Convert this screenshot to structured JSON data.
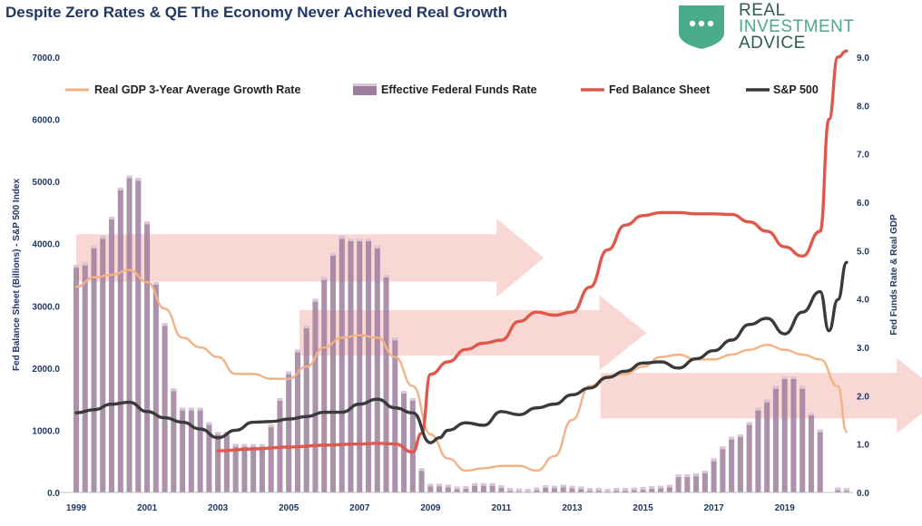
{
  "title": "Despite Zero Rates & QE The Economy Never Achieved Real Growth",
  "brand": {
    "line1": "REAL",
    "line2": "INVESTMENT",
    "line3": "ADVICE",
    "icon": "speech-bubble-icon",
    "color": "#4aaa8c"
  },
  "chart_data": {
    "type": "bar+line",
    "y_left": {
      "label": "Fed Balance Sheet (Billions) - S&P 500 Index",
      "range": [
        0,
        7000
      ],
      "ticks": [
        "0.0",
        "1000.0",
        "2000.0",
        "3000.0",
        "4000.0",
        "5000.0",
        "6000.0",
        "7000.0"
      ]
    },
    "y_right": {
      "label": "Fed Funds Rate & Real GDP",
      "range": [
        0,
        9
      ],
      "ticks": [
        "0.0",
        "1.0",
        "2.0",
        "3.0",
        "4.0",
        "5.0",
        "6.0",
        "7.0",
        "8.0",
        "9.0"
      ]
    },
    "x": {
      "range": [
        1999,
        2020.75
      ],
      "ticks": [
        "1999",
        "2001",
        "2003",
        "2005",
        "2007",
        "2009",
        "2011",
        "2013",
        "2015",
        "2017",
        "2019"
      ]
    },
    "legend": {
      "placement": "top",
      "items": [
        "Real GDP 3-Year Average Growth Rate",
        "Effective Federal Funds Rate",
        "Fed Balance Sheet",
        "S&P 500"
      ]
    },
    "colors": {
      "gdp": "#f4b183",
      "rate_bar": "#9e7e9e",
      "rate_bar_top": "#d9c6d9",
      "balance": "#e0584c",
      "sp500": "#3a3a3a",
      "arrow": "#f4b6b0",
      "axis_text": "#1f3864"
    },
    "series": [
      {
        "name": "Effective Federal Funds Rate",
        "axis": "right",
        "kind": "bar",
        "points": [
          [
            1999.0,
            4.7
          ],
          [
            1999.25,
            4.75
          ],
          [
            1999.5,
            5.1
          ],
          [
            1999.75,
            5.3
          ],
          [
            2000.0,
            5.7
          ],
          [
            2000.25,
            6.3
          ],
          [
            2000.5,
            6.55
          ],
          [
            2000.75,
            6.5
          ],
          [
            2001.0,
            5.6
          ],
          [
            2001.25,
            4.35
          ],
          [
            2001.5,
            3.5
          ],
          [
            2001.75,
            2.15
          ],
          [
            2002.0,
            1.75
          ],
          [
            2002.25,
            1.75
          ],
          [
            2002.5,
            1.75
          ],
          [
            2002.75,
            1.45
          ],
          [
            2003.0,
            1.25
          ],
          [
            2003.25,
            1.25
          ],
          [
            2003.5,
            1.0
          ],
          [
            2003.75,
            1.0
          ],
          [
            2004.0,
            1.0
          ],
          [
            2004.25,
            1.0
          ],
          [
            2004.5,
            1.4
          ],
          [
            2004.75,
            1.95
          ],
          [
            2005.0,
            2.5
          ],
          [
            2005.25,
            2.95
          ],
          [
            2005.5,
            3.45
          ],
          [
            2005.75,
            4.0
          ],
          [
            2006.0,
            4.45
          ],
          [
            2006.25,
            4.95
          ],
          [
            2006.5,
            5.3
          ],
          [
            2006.75,
            5.25
          ],
          [
            2007.0,
            5.25
          ],
          [
            2007.25,
            5.25
          ],
          [
            2007.5,
            5.1
          ],
          [
            2007.75,
            4.5
          ],
          [
            2008.0,
            3.2
          ],
          [
            2008.25,
            2.1
          ],
          [
            2008.5,
            1.95
          ],
          [
            2008.75,
            0.5
          ],
          [
            2009.0,
            0.18
          ],
          [
            2009.25,
            0.18
          ],
          [
            2009.5,
            0.16
          ],
          [
            2009.75,
            0.12
          ],
          [
            2010.0,
            0.13
          ],
          [
            2010.25,
            0.19
          ],
          [
            2010.5,
            0.19
          ],
          [
            2010.75,
            0.19
          ],
          [
            2011.0,
            0.15
          ],
          [
            2011.25,
            0.09
          ],
          [
            2011.5,
            0.08
          ],
          [
            2011.75,
            0.07
          ],
          [
            2012.0,
            0.1
          ],
          [
            2012.25,
            0.15
          ],
          [
            2012.5,
            0.14
          ],
          [
            2012.75,
            0.16
          ],
          [
            2013.0,
            0.14
          ],
          [
            2013.25,
            0.12
          ],
          [
            2013.5,
            0.09
          ],
          [
            2013.75,
            0.09
          ],
          [
            2014.0,
            0.07
          ],
          [
            2014.25,
            0.09
          ],
          [
            2014.5,
            0.09
          ],
          [
            2014.75,
            0.1
          ],
          [
            2015.0,
            0.11
          ],
          [
            2015.25,
            0.13
          ],
          [
            2015.5,
            0.14
          ],
          [
            2015.75,
            0.16
          ],
          [
            2016.0,
            0.37
          ],
          [
            2016.25,
            0.37
          ],
          [
            2016.5,
            0.39
          ],
          [
            2016.75,
            0.45
          ],
          [
            2017.0,
            0.7
          ],
          [
            2017.25,
            0.95
          ],
          [
            2017.5,
            1.15
          ],
          [
            2017.75,
            1.2
          ],
          [
            2018.0,
            1.45
          ],
          [
            2018.25,
            1.75
          ],
          [
            2018.5,
            1.92
          ],
          [
            2018.75,
            2.2
          ],
          [
            2019.0,
            2.4
          ],
          [
            2019.25,
            2.4
          ],
          [
            2019.5,
            2.2
          ],
          [
            2019.75,
            1.65
          ],
          [
            2020.0,
            1.3
          ],
          [
            2020.5,
            0.1
          ],
          [
            2020.75,
            0.09
          ]
        ]
      },
      {
        "name": "Real GDP 3-Year Average Growth Rate",
        "axis": "right",
        "kind": "line",
        "points": [
          [
            1999.0,
            4.25
          ],
          [
            1999.5,
            4.45
          ],
          [
            2000.0,
            4.5
          ],
          [
            2000.5,
            4.6
          ],
          [
            2001.0,
            4.35
          ],
          [
            2001.5,
            3.8
          ],
          [
            2002.0,
            3.2
          ],
          [
            2002.5,
            3.0
          ],
          [
            2003.0,
            2.8
          ],
          [
            2003.5,
            2.45
          ],
          [
            2004.0,
            2.45
          ],
          [
            2004.5,
            2.35
          ],
          [
            2005.0,
            2.35
          ],
          [
            2005.5,
            2.6
          ],
          [
            2006.0,
            3.0
          ],
          [
            2006.5,
            3.2
          ],
          [
            2007.0,
            3.25
          ],
          [
            2007.5,
            3.2
          ],
          [
            2008.0,
            2.8
          ],
          [
            2008.5,
            2.2
          ],
          [
            2009.0,
            1.2
          ],
          [
            2009.5,
            0.7
          ],
          [
            2010.0,
            0.45
          ],
          [
            2010.5,
            0.5
          ],
          [
            2011.0,
            0.55
          ],
          [
            2011.5,
            0.55
          ],
          [
            2012.0,
            0.45
          ],
          [
            2012.5,
            0.75
          ],
          [
            2013.0,
            1.5
          ],
          [
            2013.5,
            2.2
          ],
          [
            2014.0,
            2.4
          ],
          [
            2014.5,
            2.45
          ],
          [
            2015.0,
            2.6
          ],
          [
            2015.5,
            2.8
          ],
          [
            2016.0,
            2.85
          ],
          [
            2016.5,
            2.75
          ],
          [
            2017.0,
            2.75
          ],
          [
            2017.5,
            2.85
          ],
          [
            2018.0,
            2.95
          ],
          [
            2018.5,
            3.05
          ],
          [
            2019.0,
            2.95
          ],
          [
            2019.5,
            2.85
          ],
          [
            2020.0,
            2.75
          ],
          [
            2020.5,
            2.2
          ],
          [
            2020.75,
            1.25
          ]
        ]
      },
      {
        "name": "Fed Balance Sheet",
        "axis": "left",
        "kind": "line",
        "points": [
          [
            2003.0,
            670
          ],
          [
            2004.0,
            700
          ],
          [
            2005.0,
            730
          ],
          [
            2006.0,
            760
          ],
          [
            2007.0,
            780
          ],
          [
            2007.5,
            790
          ],
          [
            2008.0,
            780
          ],
          [
            2008.5,
            650
          ],
          [
            2008.75,
            950
          ],
          [
            2009.0,
            1900
          ],
          [
            2009.5,
            2100
          ],
          [
            2010.0,
            2300
          ],
          [
            2010.5,
            2400
          ],
          [
            2011.0,
            2450
          ],
          [
            2011.5,
            2750
          ],
          [
            2012.0,
            2900
          ],
          [
            2012.5,
            2850
          ],
          [
            2013.0,
            2900
          ],
          [
            2013.5,
            3300
          ],
          [
            2014.0,
            3900
          ],
          [
            2014.5,
            4300
          ],
          [
            2015.0,
            4450
          ],
          [
            2015.5,
            4500
          ],
          [
            2016.0,
            4500
          ],
          [
            2016.5,
            4480
          ],
          [
            2017.0,
            4480
          ],
          [
            2017.5,
            4470
          ],
          [
            2018.0,
            4350
          ],
          [
            2018.5,
            4200
          ],
          [
            2019.0,
            3950
          ],
          [
            2019.5,
            3800
          ],
          [
            2020.0,
            4200
          ],
          [
            2020.25,
            6000
          ],
          [
            2020.5,
            7000
          ],
          [
            2020.75,
            7100
          ]
        ]
      },
      {
        "name": "S&P 500",
        "axis": "left",
        "kind": "line",
        "points": [
          [
            1999.0,
            1280
          ],
          [
            1999.5,
            1330
          ],
          [
            2000.0,
            1420
          ],
          [
            2000.5,
            1450
          ],
          [
            2001.0,
            1300
          ],
          [
            2001.5,
            1200
          ],
          [
            2002.0,
            1130
          ],
          [
            2002.5,
            1020
          ],
          [
            2003.0,
            880
          ],
          [
            2003.5,
            1000
          ],
          [
            2004.0,
            1130
          ],
          [
            2004.5,
            1140
          ],
          [
            2005.0,
            1180
          ],
          [
            2005.5,
            1220
          ],
          [
            2006.0,
            1290
          ],
          [
            2006.5,
            1290
          ],
          [
            2007.0,
            1420
          ],
          [
            2007.5,
            1500
          ],
          [
            2008.0,
            1360
          ],
          [
            2008.5,
            1280
          ],
          [
            2009.0,
            800
          ],
          [
            2009.25,
            880
          ],
          [
            2009.5,
            1000
          ],
          [
            2010.0,
            1120
          ],
          [
            2010.5,
            1080
          ],
          [
            2011.0,
            1300
          ],
          [
            2011.5,
            1250
          ],
          [
            2012.0,
            1360
          ],
          [
            2012.5,
            1420
          ],
          [
            2013.0,
            1570
          ],
          [
            2013.5,
            1680
          ],
          [
            2014.0,
            1850
          ],
          [
            2014.5,
            1950
          ],
          [
            2015.0,
            2080
          ],
          [
            2015.5,
            2100
          ],
          [
            2016.0,
            2000
          ],
          [
            2016.5,
            2150
          ],
          [
            2017.0,
            2280
          ],
          [
            2017.5,
            2450
          ],
          [
            2018.0,
            2700
          ],
          [
            2018.5,
            2800
          ],
          [
            2019.0,
            2550
          ],
          [
            2019.5,
            2900
          ],
          [
            2020.0,
            3230
          ],
          [
            2020.25,
            2600
          ],
          [
            2020.5,
            3100
          ],
          [
            2020.75,
            3700
          ]
        ]
      }
    ],
    "annotations": {
      "arrows": [
        {
          "x0": 1999.0,
          "x1": 2012.2,
          "y": 4.85,
          "half_height": 0.49
        },
        {
          "x0": 2005.3,
          "x1": 2015.1,
          "y": 3.3,
          "half_height": 0.47
        },
        {
          "x0": 2013.8,
          "x1": 2023.5,
          "y": 2.0,
          "half_height": 0.47
        }
      ]
    }
  }
}
